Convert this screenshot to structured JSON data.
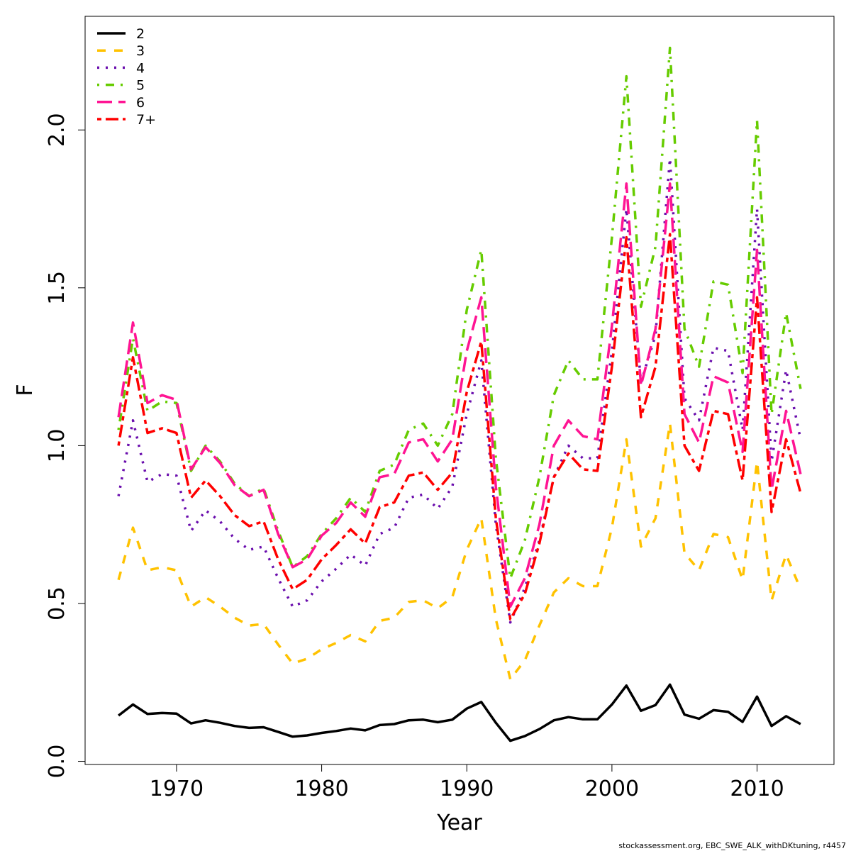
{
  "chart_data": {
    "type": "line",
    "title": "",
    "xlabel": "Year",
    "ylabel": "F",
    "xlim": [
      1963.7,
      2015.3
    ],
    "ylim": [
      -0.01,
      2.36
    ],
    "x_ticks": [
      1970,
      1980,
      1990,
      2000,
      2010
    ],
    "x_tick_labels": [
      "1970",
      "1980",
      "1990",
      "2000",
      "2010"
    ],
    "y_ticks": [
      0.0,
      0.5,
      1.0,
      1.5,
      2.0
    ],
    "y_tick_labels": [
      "0.0",
      "0.5",
      "1.0",
      "1.5",
      "2.0"
    ],
    "grid": false,
    "legend_position": "top-left",
    "x": [
      1966,
      1967,
      1968,
      1969,
      1970,
      1971,
      1972,
      1973,
      1974,
      1975,
      1976,
      1977,
      1978,
      1979,
      1980,
      1981,
      1982,
      1983,
      1984,
      1985,
      1986,
      1987,
      1988,
      1989,
      1990,
      1991,
      1992,
      1993,
      1994,
      1995,
      1996,
      1997,
      1998,
      1999,
      2000,
      2001,
      2002,
      2003,
      2004,
      2005,
      2006,
      2007,
      2008,
      2009,
      2010,
      2011,
      2012,
      2013
    ],
    "series": [
      {
        "name": "2",
        "color": "#000000",
        "dash": "solid",
        "values": [
          0.145,
          0.18,
          0.15,
          0.153,
          0.151,
          0.12,
          0.13,
          0.122,
          0.112,
          0.106,
          0.108,
          0.093,
          0.078,
          0.082,
          0.09,
          0.096,
          0.104,
          0.098,
          0.115,
          0.118,
          0.13,
          0.132,
          0.124,
          0.132,
          0.167,
          0.188,
          0.122,
          0.065,
          0.08,
          0.102,
          0.13,
          0.14,
          0.133,
          0.133,
          0.18,
          0.24,
          0.16,
          0.178,
          0.243,
          0.148,
          0.135,
          0.162,
          0.157,
          0.125,
          0.205,
          0.112,
          0.143,
          0.118
        ]
      },
      {
        "name": "3",
        "color": "#FFC200",
        "dash": "dashed",
        "values": [
          0.575,
          0.74,
          0.605,
          0.615,
          0.605,
          0.49,
          0.52,
          0.49,
          0.455,
          0.43,
          0.435,
          0.37,
          0.31,
          0.325,
          0.355,
          0.375,
          0.4,
          0.38,
          0.445,
          0.455,
          0.505,
          0.51,
          0.485,
          0.52,
          0.67,
          0.77,
          0.45,
          0.26,
          0.32,
          0.43,
          0.535,
          0.58,
          0.555,
          0.555,
          0.74,
          1.02,
          0.68,
          0.77,
          1.07,
          0.66,
          0.605,
          0.72,
          0.71,
          0.575,
          0.95,
          0.51,
          0.655,
          0.545
        ]
      },
      {
        "name": "4",
        "color": "#6A0DAD",
        "dash": "dotted",
        "values": [
          0.84,
          1.08,
          0.885,
          0.91,
          0.905,
          0.73,
          0.795,
          0.76,
          0.705,
          0.67,
          0.68,
          0.58,
          0.49,
          0.51,
          0.57,
          0.61,
          0.655,
          0.62,
          0.72,
          0.74,
          0.835,
          0.845,
          0.8,
          0.87,
          1.1,
          1.27,
          0.75,
          0.44,
          0.55,
          0.7,
          0.9,
          1.0,
          0.96,
          0.96,
          1.3,
          1.75,
          1.2,
          1.35,
          1.91,
          1.15,
          1.08,
          1.31,
          1.3,
          1.05,
          1.75,
          0.95,
          1.24,
          1.02
        ]
      },
      {
        "name": "5",
        "color": "#66CC00",
        "dash": "dashdot",
        "values": [
          1.05,
          1.34,
          1.11,
          1.14,
          1.135,
          0.92,
          1.0,
          0.95,
          0.88,
          0.84,
          0.865,
          0.73,
          0.615,
          0.65,
          0.72,
          0.77,
          0.835,
          0.79,
          0.92,
          0.94,
          1.05,
          1.07,
          1.0,
          1.1,
          1.43,
          1.62,
          0.96,
          0.58,
          0.7,
          0.9,
          1.16,
          1.27,
          1.21,
          1.21,
          1.66,
          2.17,
          1.44,
          1.63,
          2.26,
          1.37,
          1.25,
          1.52,
          1.51,
          1.23,
          2.03,
          1.1,
          1.42,
          1.18
        ]
      },
      {
        "name": "6",
        "color": "#FF1493",
        "dash": "longdash",
        "values": [
          1.09,
          1.39,
          1.135,
          1.16,
          1.145,
          0.925,
          0.995,
          0.945,
          0.875,
          0.84,
          0.86,
          0.72,
          0.615,
          0.64,
          0.715,
          0.755,
          0.82,
          0.775,
          0.9,
          0.91,
          1.01,
          1.02,
          0.95,
          1.02,
          1.3,
          1.47,
          0.87,
          0.49,
          0.58,
          0.75,
          1.0,
          1.08,
          1.03,
          1.02,
          1.38,
          1.83,
          1.19,
          1.37,
          1.83,
          1.1,
          1.01,
          1.22,
          1.2,
          0.98,
          1.62,
          0.86,
          1.11,
          0.91
        ]
      },
      {
        "name": "7+",
        "color": "#FF0000",
        "dash": "twodash",
        "values": [
          1.0,
          1.28,
          1.04,
          1.055,
          1.04,
          0.835,
          0.89,
          0.84,
          0.78,
          0.745,
          0.76,
          0.64,
          0.545,
          0.575,
          0.64,
          0.685,
          0.735,
          0.69,
          0.805,
          0.82,
          0.905,
          0.915,
          0.86,
          0.915,
          1.17,
          1.33,
          0.77,
          0.45,
          0.53,
          0.69,
          0.9,
          0.975,
          0.925,
          0.92,
          1.25,
          1.66,
          1.09,
          1.25,
          1.67,
          1.0,
          0.92,
          1.11,
          1.1,
          0.89,
          1.47,
          0.79,
          1.02,
          0.85
        ]
      }
    ]
  },
  "footer": "stockassessment.org, EBC_SWE_ALK_withDKtuning, r4457"
}
